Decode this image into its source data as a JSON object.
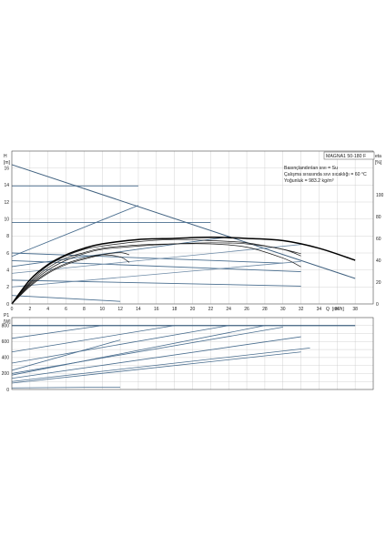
{
  "chart_data": [
    {
      "type": "line",
      "panel": "head",
      "model_label": "MAGNA1 50-180 F",
      "info_lines": [
        "Basınçlandırılan sıvı = Su",
        "Çalışma sırasında sıvı sıcaklığı = 60 °C",
        "Yoğunluk = 983.2 kg/m³"
      ],
      "y_axis_title": "H",
      "y_axis_unit": "[m]",
      "y2_axis_title": "eta",
      "y2_axis_unit": "[%]",
      "x_axis_title": "Q",
      "x_axis_unit": "[m³/h]",
      "xlim": [
        0,
        40
      ],
      "ylim": [
        0,
        18
      ],
      "y2lim": [
        0,
        140
      ],
      "x_ticks": [
        "0",
        "2",
        "4",
        "6",
        "8",
        "10",
        "12",
        "14",
        "16",
        "18",
        "20",
        "22",
        "24",
        "26",
        "28",
        "30",
        "32",
        "34",
        "36",
        "38"
      ],
      "y_ticks": [
        "0",
        "2",
        "4",
        "6",
        "8",
        "10",
        "12",
        "14",
        "16"
      ],
      "y2_ticks": [
        "0",
        "20",
        "40",
        "60",
        "80",
        "100"
      ],
      "grid": true,
      "series": [
        {
          "role": "max-curve",
          "points": [
            [
              0,
              16.4
            ],
            [
              38,
              3.0
            ]
          ]
        },
        {
          "role": "constant-curve",
          "points": [
            [
              0,
              13.9
            ],
            [
              14,
              13.9
            ]
          ]
        },
        {
          "role": "constant-curve",
          "points": [
            [
              0,
              9.6
            ],
            [
              22,
              9.6
            ]
          ]
        },
        {
          "role": "constant-curve",
          "points": [
            [
              0,
              5.6
            ],
            [
              14,
              11.6
            ]
          ]
        },
        {
          "role": "constant-curve",
          "points": [
            [
              0,
              4.4
            ],
            [
              24,
              7.9
            ]
          ]
        },
        {
          "role": "constant-curve",
          "points": [
            [
              0,
              6.0
            ],
            [
              30,
              4.8
            ]
          ]
        },
        {
          "role": "constant-curve",
          "points": [
            [
              0,
              5.1
            ],
            [
              32,
              3.8
            ]
          ]
        },
        {
          "role": "constant-curve",
          "points": [
            [
              0,
              2.8
            ],
            [
              32,
              2.1
            ]
          ]
        },
        {
          "role": "constant-curve",
          "points": [
            [
              0,
              1.0
            ],
            [
              12,
              0.3
            ]
          ]
        },
        {
          "role": "proportional-curve",
          "points": [
            [
              0,
              2.0
            ],
            [
              32,
              5.0
            ]
          ]
        },
        {
          "role": "proportional-curve",
          "points": [
            [
              0,
              3.6
            ],
            [
              32,
              7.0
            ]
          ]
        },
        {
          "role": "efficiency",
          "points": [
            [
              0,
              0
            ],
            [
              2,
              17
            ],
            [
              4,
              29
            ],
            [
              6,
              37
            ],
            [
              8,
              42
            ],
            [
              10,
              45
            ],
            [
              12,
              43
            ],
            [
              13,
              38
            ]
          ]
        },
        {
          "role": "efficiency",
          "points": [
            [
              0,
              0
            ],
            [
              2,
              16
            ],
            [
              4,
              28
            ],
            [
              6,
              36
            ],
            [
              8,
              41
            ],
            [
              10,
              45
            ],
            [
              12,
              47
            ],
            [
              13,
              45
            ]
          ]
        },
        {
          "role": "efficiency",
          "points": [
            [
              0,
              0
            ],
            [
              2,
              19
            ],
            [
              4,
              33
            ],
            [
              6,
              42
            ],
            [
              8,
              47
            ],
            [
              10,
              51
            ],
            [
              14,
              54
            ],
            [
              18,
              55
            ],
            [
              22,
              55
            ],
            [
              26,
              52
            ],
            [
              30,
              42
            ],
            [
              32,
              34
            ]
          ]
        },
        {
          "role": "efficiency",
          "points": [
            [
              0,
              0
            ],
            [
              2,
              18
            ],
            [
              4,
              31
            ],
            [
              6,
              40
            ],
            [
              8,
              46
            ],
            [
              10,
              50
            ],
            [
              14,
              53
            ],
            [
              18,
              55
            ],
            [
              22,
              56
            ],
            [
              26,
              55
            ],
            [
              30,
              50
            ],
            [
              32,
              44
            ]
          ]
        },
        {
          "role": "efficiency",
          "points": [
            [
              0,
              0
            ],
            [
              2,
              20
            ],
            [
              4,
              35
            ],
            [
              6,
              44
            ],
            [
              8,
              50
            ],
            [
              10,
              53
            ],
            [
              14,
              57
            ],
            [
              18,
              59
            ],
            [
              22,
              58
            ],
            [
              26,
              56
            ],
            [
              30,
              50
            ],
            [
              32,
              46
            ]
          ]
        },
        {
          "role": "efficiency-max",
          "points": [
            [
              0,
              0
            ],
            [
              2,
              22
            ],
            [
              4,
              36
            ],
            [
              6,
              45
            ],
            [
              8,
              51
            ],
            [
              10,
              55
            ],
            [
              14,
              59
            ],
            [
              18,
              60
            ],
            [
              22,
              61
            ],
            [
              26,
              60
            ],
            [
              30,
              58
            ],
            [
              34,
              51
            ],
            [
              38,
              40
            ]
          ]
        }
      ]
    },
    {
      "type": "line",
      "panel": "power",
      "y_axis_title": "P1",
      "y_axis_unit": "[W]",
      "xlim": [
        0,
        40
      ],
      "ylim": [
        0,
        900
      ],
      "y_ticks": [
        "0",
        "200",
        "400",
        "600",
        "800"
      ],
      "grid": true,
      "series": [
        {
          "role": "max-power",
          "points": [
            [
              0,
              800
            ],
            [
              38,
              800
            ]
          ]
        },
        {
          "role": "power",
          "points": [
            [
              0,
              640
            ],
            [
              10,
              800
            ]
          ]
        },
        {
          "role": "power",
          "points": [
            [
              0,
              470
            ],
            [
              18,
              800
            ]
          ]
        },
        {
          "role": "power",
          "points": [
            [
              0,
              330
            ],
            [
              24,
              800
            ]
          ]
        },
        {
          "role": "power",
          "points": [
            [
              0,
              180
            ],
            [
              28,
              800
            ]
          ]
        },
        {
          "role": "power",
          "points": [
            [
              0,
              200
            ],
            [
              30,
              780
            ]
          ]
        },
        {
          "role": "power",
          "points": [
            [
              0,
              140
            ],
            [
              32,
              660
            ]
          ]
        },
        {
          "role": "power",
          "points": [
            [
              0,
              100
            ],
            [
              33,
              520
            ]
          ]
        },
        {
          "role": "power",
          "points": [
            [
              0,
              80
            ],
            [
              32,
              470
            ]
          ]
        },
        {
          "role": "power",
          "points": [
            [
              0,
              240
            ],
            [
              12,
              620
            ]
          ]
        },
        {
          "role": "power",
          "points": [
            [
              0,
              20
            ],
            [
              12,
              30
            ]
          ]
        }
      ]
    }
  ]
}
